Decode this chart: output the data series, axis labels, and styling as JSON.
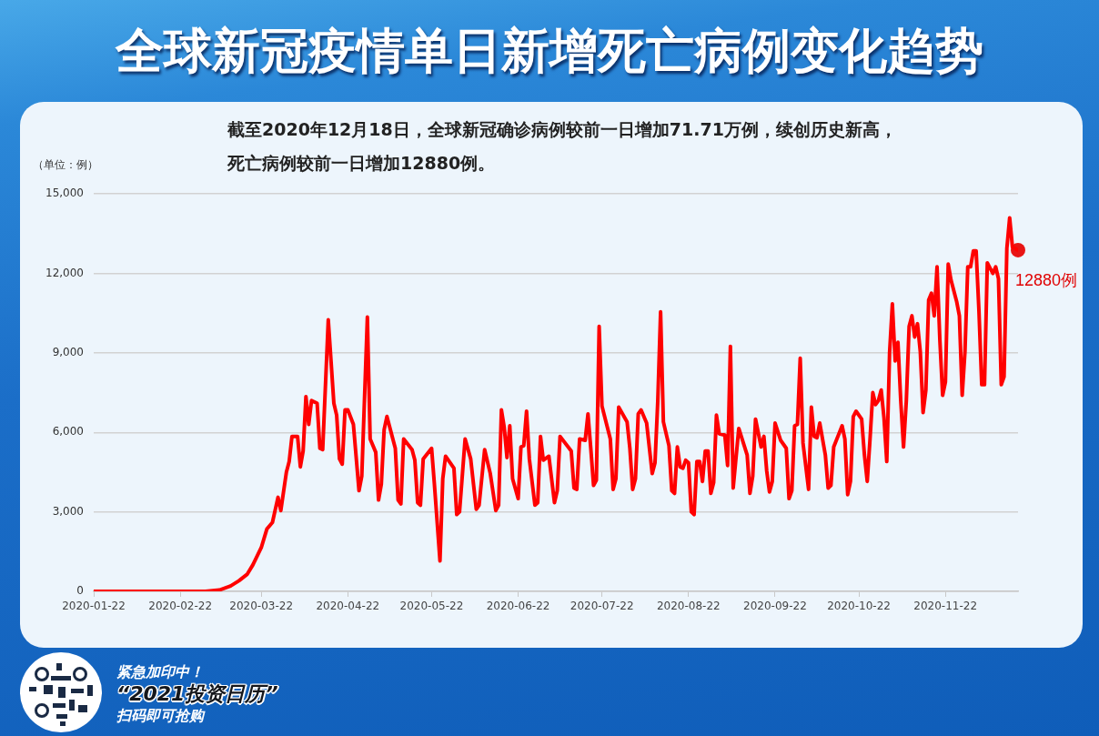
{
  "chart_data": {
    "type": "line",
    "title": "全球新冠疫情单日新增死亡病例变化趋势",
    "subtitle": "截至2020年12月18日，全球新冠确诊病例较前一日增加71.71万例，续创历史新高，死亡病例较前一日增加12880例。",
    "ylabel": "（单位：例）",
    "annotations": [
      "紧急加印中！",
      "“2021投资日历”",
      "扫码即可抢购",
      {
        "text": "12880例",
        "x": "2020-12-18",
        "y": 12880
      }
    ],
    "x": [
      "2020-01-22",
      "2020-03-02",
      "2020-03-07",
      "2020-03-11",
      "2020-03-14",
      "2020-03-17",
      "2020-03-19",
      "2020-03-22",
      "2020-03-24",
      "2020-03-26",
      "2020-03-28",
      "2020-03-29",
      "2020-03-31",
      "2020-04-01",
      "2020-04-02",
      "2020-04-04",
      "2020-04-05",
      "2020-04-06",
      "2020-04-07",
      "2020-04-08",
      "2020-04-09",
      "2020-04-11",
      "2020-04-12",
      "2020-04-13",
      "2020-04-15",
      "2020-04-17",
      "2020-04-18",
      "2020-04-19",
      "2020-04-20",
      "2020-04-21",
      "2020-04-22",
      "2020-04-24",
      "2020-04-26",
      "2020-04-27",
      "2020-04-29",
      "2020-04-30",
      "2020-05-02",
      "2020-05-03",
      "2020-05-04",
      "2020-05-05",
      "2020-05-06",
      "2020-05-09",
      "2020-05-10",
      "2020-05-11",
      "2020-05-12",
      "2020-05-15",
      "2020-05-16",
      "2020-05-17",
      "2020-05-18",
      "2020-05-19",
      "2020-05-22",
      "2020-05-23",
      "2020-05-25",
      "2020-05-26",
      "2020-05-27",
      "2020-05-30",
      "2020-05-31",
      "2020-06-01",
      "2020-06-03",
      "2020-06-05",
      "2020-06-07",
      "2020-06-08",
      "2020-06-10",
      "2020-06-12",
      "2020-06-14",
      "2020-06-15",
      "2020-06-16",
      "2020-06-17",
      "2020-06-18",
      "2020-06-19",
      "2020-06-20",
      "2020-06-22",
      "2020-06-23",
      "2020-06-24",
      "2020-06-25",
      "2020-06-26",
      "2020-06-28",
      "2020-06-29",
      "2020-06-30",
      "2020-07-01",
      "2020-07-03",
      "2020-07-05",
      "2020-07-06",
      "2020-07-07",
      "2020-07-11",
      "2020-07-12",
      "2020-07-13",
      "2020-07-14",
      "2020-07-16",
      "2020-07-17",
      "2020-07-18",
      "2020-07-19",
      "2020-07-20",
      "2020-07-21",
      "2020-07-22",
      "2020-07-25",
      "2020-07-26",
      "2020-07-27",
      "2020-07-28",
      "2020-07-31",
      "2020-08-01",
      "2020-08-02",
      "2020-08-03",
      "2020-08-04",
      "2020-08-05",
      "2020-08-07",
      "2020-08-09",
      "2020-08-10",
      "2020-08-11",
      "2020-08-12",
      "2020-08-13",
      "2020-08-15",
      "2020-08-16",
      "2020-08-17",
      "2020-08-18",
      "2020-08-19",
      "2020-08-20",
      "2020-08-21",
      "2020-08-22",
      "2020-08-23",
      "2020-08-24",
      "2020-08-25",
      "2020-08-26",
      "2020-08-27",
      "2020-08-28",
      "2020-08-29",
      "2020-08-30",
      "2020-08-31",
      "2020-09-01",
      "2020-09-02",
      "2020-09-04",
      "2020-09-05",
      "2020-09-06",
      "2020-09-07",
      "2020-09-09",
      "2020-09-12",
      "2020-09-13",
      "2020-09-14",
      "2020-09-15",
      "2020-09-17",
      "2020-09-18",
      "2020-09-19",
      "2020-09-20",
      "2020-09-21",
      "2020-09-22",
      "2020-09-24",
      "2020-09-26",
      "2020-09-27",
      "2020-09-28",
      "2020-09-29",
      "2020-09-30",
      "2020-10-01",
      "2020-10-02",
      "2020-10-04",
      "2020-10-05",
      "2020-10-06",
      "2020-10-07",
      "2020-10-08",
      "2020-10-10",
      "2020-10-11",
      "2020-10-12",
      "2020-10-13",
      "2020-10-16",
      "2020-10-17",
      "2020-10-18",
      "2020-10-19",
      "2020-10-20",
      "2020-10-21",
      "2020-10-23",
      "2020-10-24",
      "2020-10-25",
      "2020-10-26",
      "2020-10-27",
      "2020-10-28",
      "2020-10-29",
      "2020-10-30",
      "2020-10-31",
      "2020-11-01",
      "2020-11-02",
      "2020-11-03",
      "2020-11-04",
      "2020-11-05",
      "2020-11-06",
      "2020-11-07",
      "2020-11-08",
      "2020-11-09",
      "2020-11-10",
      "2020-11-11",
      "2020-11-12",
      "2020-11-13",
      "2020-11-14",
      "2020-11-15",
      "2020-11-16",
      "2020-11-17",
      "2020-11-18",
      "2020-11-19",
      "2020-11-20",
      "2020-11-21",
      "2020-11-22",
      "2020-11-23",
      "2020-11-24",
      "2020-11-26",
      "2020-11-27",
      "2020-11-28",
      "2020-11-29",
      "2020-11-30",
      "2020-12-01",
      "2020-12-02",
      "2020-12-03",
      "2020-12-04",
      "2020-12-05",
      "2020-12-06",
      "2020-12-07",
      "2020-12-09",
      "2020-12-10",
      "2020-12-11",
      "2020-12-12",
      "2020-12-13",
      "2020-12-14",
      "2020-12-15",
      "2020-12-16",
      "2020-12-18"
    ],
    "series": [
      {
        "color": "#ff0000",
        "values": [
          0,
          0,
          50,
          200,
          400,
          650,
          1000,
          1650,
          2350,
          2600,
          3550,
          3050,
          4500,
          4900,
          5850,
          5850,
          4700,
          5300,
          7350,
          6300,
          7200,
          7100,
          5400,
          5350,
          10250,
          7100,
          6650,
          5000,
          4800,
          6850,
          6850,
          6300,
          3800,
          4350,
          10350,
          5750,
          5250,
          3450,
          4050,
          6100,
          6600,
          5400,
          3450,
          3300,
          5750,
          5350,
          4950,
          3350,
          3250,
          5000,
          5400,
          4050,
          1150,
          4250,
          5100,
          4650,
          2900,
          3000,
          5750,
          5000,
          3100,
          3250,
          5350,
          4450,
          3050,
          3250,
          6850,
          6200,
          5050,
          6250,
          4250,
          3500,
          5450,
          5500,
          6800,
          5000,
          3250,
          3350,
          5850,
          4950,
          5100,
          3350,
          3800,
          5850,
          5300,
          3900,
          3850,
          5750,
          5700,
          6700,
          5400,
          4000,
          4200,
          10000,
          7000,
          5750,
          3850,
          4250,
          6950,
          6400,
          5400,
          3850,
          4250,
          6700,
          6850,
          6350,
          4450,
          4850,
          7200,
          10550,
          6400,
          5500,
          3800,
          3700,
          5450,
          4700,
          4650,
          4950,
          4850,
          3000,
          2900,
          4900,
          4900,
          4150,
          5300,
          5300,
          3700,
          4100,
          6650,
          5950,
          5900,
          4750,
          9250,
          3900,
          6150,
          5150,
          3700,
          4350,
          6500,
          5450,
          5850,
          4550,
          3750,
          4150,
          6350,
          5700,
          5400,
          3500,
          3800,
          6250,
          6300,
          8800,
          5600,
          3850,
          6950,
          5850,
          5800,
          6350,
          5150,
          3900,
          4000,
          5450,
          6250,
          5750,
          3650,
          4150,
          6600,
          6800,
          6500,
          5150,
          4150,
          5750,
          7500,
          7050,
          7200,
          7600,
          6550,
          4900,
          9000,
          10850,
          8700,
          9400,
          7200,
          5450,
          7200,
          10000,
          10400,
          9600,
          10100,
          9050,
          6750,
          7600,
          11000,
          11250,
          10400,
          12250,
          9500,
          7400,
          7900,
          12350,
          11750,
          10950,
          10400,
          7400,
          9050,
          12250,
          12250,
          12850,
          12850,
          10600,
          7800,
          7800,
          12400,
          12000,
          12250,
          11800,
          7800,
          8100,
          12950,
          14100,
          13000,
          12880
        ]
      },
      {
        "type": "scatter",
        "color": "#e81414",
        "marker": "circle",
        "x": [
          "2020-12-18"
        ],
        "values": [
          12880
        ]
      }
    ],
    "xlim": [
      "2020-01-22",
      "2020-12-18"
    ],
    "xticks": [
      "2020-01-22",
      "2020-02-22",
      "2020-03-22",
      "2020-04-22",
      "2020-05-22",
      "2020-06-22",
      "2020-07-22",
      "2020-08-22",
      "2020-09-22",
      "2020-10-22",
      "2020-11-22"
    ],
    "ylim": [
      0,
      15000
    ],
    "yticks": [
      0,
      {
        "value": 3000,
        "label": "3,000"
      },
      {
        "value": 6000,
        "label": "6,000"
      },
      {
        "value": 9000,
        "label": "9,000"
      },
      {
        "value": 12000,
        "label": "12,000"
      },
      {
        "value": 15000,
        "label": "15,000"
      }
    ],
    "grid": "y",
    "marker": "none",
    "line_style": "solid"
  }
}
